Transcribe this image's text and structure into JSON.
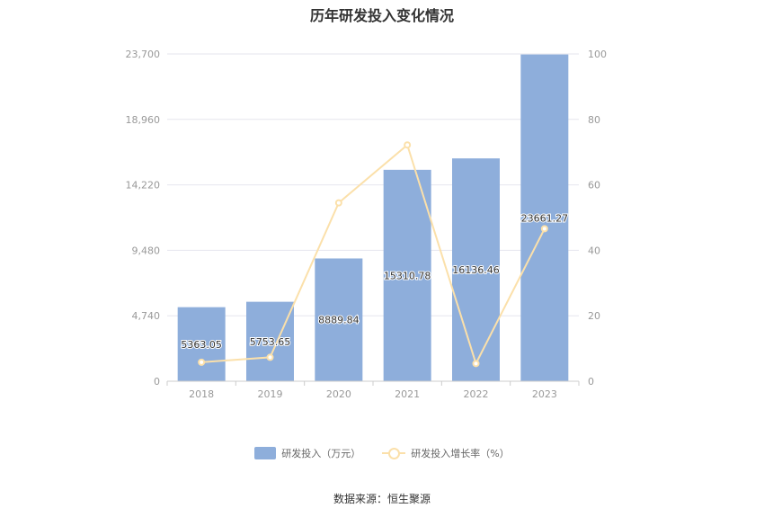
{
  "chart_data": {
    "type": "bar",
    "title": "历年研发投入变化情况",
    "categories": [
      "2018",
      "2019",
      "2020",
      "2021",
      "2022",
      "2023"
    ],
    "series": [
      {
        "name": "研发投入（万元）",
        "type": "bar",
        "axis": "left",
        "color": "#8eaedb",
        "values": [
          5363.05,
          5753.65,
          8889.84,
          15310.78,
          16136.46,
          23661.27
        ],
        "labels": [
          "5363.05",
          "5753.65",
          "8889.84",
          "15310.78",
          "16136.46",
          "23661.27"
        ]
      },
      {
        "name": "研发投入增长率（%）",
        "type": "line",
        "axis": "right",
        "color": "#fbe0aa",
        "values": [
          5.8,
          7.3,
          54.5,
          72.2,
          5.4,
          46.6
        ]
      }
    ],
    "y_left": {
      "ylim": [
        0,
        23700
      ],
      "ticks": [
        "0",
        "4,740",
        "9,480",
        "14,220",
        "18,960",
        "23,700"
      ]
    },
    "y_right": {
      "ylim": [
        0,
        100
      ],
      "ticks": [
        "0",
        "20",
        "40",
        "60",
        "80",
        "100"
      ]
    },
    "grid": true,
    "legend_position": "bottom-center"
  },
  "source": "数据来源：恒生聚源"
}
